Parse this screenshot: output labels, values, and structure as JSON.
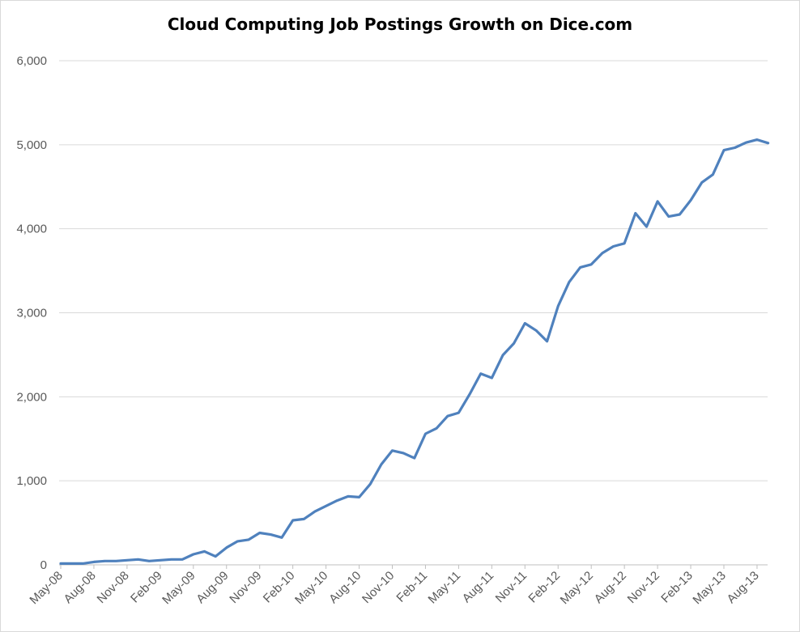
{
  "chart_data": {
    "type": "line",
    "title": "Cloud Computing Job Postings Growth on Dice.com",
    "xlabel": "",
    "ylabel": "",
    "ylim": [
      0,
      6000
    ],
    "yticks": [
      0,
      1000,
      2000,
      3000,
      4000,
      5000,
      6000
    ],
    "ytick_labels": [
      "0",
      "1,000",
      "2,000",
      "3,000",
      "4,000",
      "5,000",
      "6,000"
    ],
    "xtick_labels": [
      "May-08",
      "Aug-08",
      "Nov-08",
      "Feb-09",
      "May-09",
      "Aug-09",
      "Nov-09",
      "Feb-10",
      "May-10",
      "Aug-10",
      "Nov-10",
      "Feb-11",
      "May-11",
      "Aug-11",
      "Nov-11",
      "Feb-12",
      "May-12",
      "Aug-12",
      "Nov-12",
      "Feb-13",
      "May-13",
      "Aug-13"
    ],
    "grid": true,
    "legend": "none",
    "series_color": "#4f81bd",
    "x": [
      "May-08",
      "Jun-08",
      "Jul-08",
      "Aug-08",
      "Sep-08",
      "Oct-08",
      "Nov-08",
      "Dec-08",
      "Jan-09",
      "Feb-09",
      "Mar-09",
      "Apr-09",
      "May-09",
      "Jun-09",
      "Jul-09",
      "Aug-09",
      "Sep-09",
      "Oct-09",
      "Nov-09",
      "Dec-09",
      "Jan-10",
      "Feb-10",
      "Mar-10",
      "Apr-10",
      "May-10",
      "Jun-10",
      "Jul-10",
      "Aug-10",
      "Sep-10",
      "Oct-10",
      "Nov-10",
      "Dec-10",
      "Jan-11",
      "Feb-11",
      "Mar-11",
      "Apr-11",
      "May-11",
      "Jun-11",
      "Jul-11",
      "Aug-11",
      "Sep-11",
      "Oct-11",
      "Nov-11",
      "Dec-11",
      "Jan-12",
      "Feb-12",
      "Mar-12",
      "Apr-12",
      "May-12",
      "Jun-12",
      "Jul-12",
      "Aug-12",
      "Sep-12",
      "Oct-12",
      "Nov-12",
      "Dec-12",
      "Jan-13",
      "Feb-13",
      "Mar-13",
      "Apr-13",
      "May-13",
      "Jun-13",
      "Jul-13",
      "Aug-13",
      "Sep-13"
    ],
    "series": [
      {
        "values": [
          15,
          15,
          15,
          35,
          45,
          45,
          55,
          65,
          45,
          55,
          65,
          65,
          125,
          160,
          100,
          205,
          280,
          300,
          380,
          360,
          325,
          530,
          545,
          635,
          700,
          765,
          815,
          805,
          960,
          1195,
          1360,
          1330,
          1270,
          1560,
          1625,
          1770,
          1810,
          2030,
          2275,
          2225,
          2495,
          2635,
          2875,
          2790,
          2660,
          3080,
          3365,
          3540,
          3575,
          3710,
          3790,
          3825,
          4185,
          4025,
          4325,
          4145,
          4170,
          4340,
          4550,
          4645,
          4935,
          4965,
          5025,
          5060,
          5020
        ]
      }
    ]
  }
}
